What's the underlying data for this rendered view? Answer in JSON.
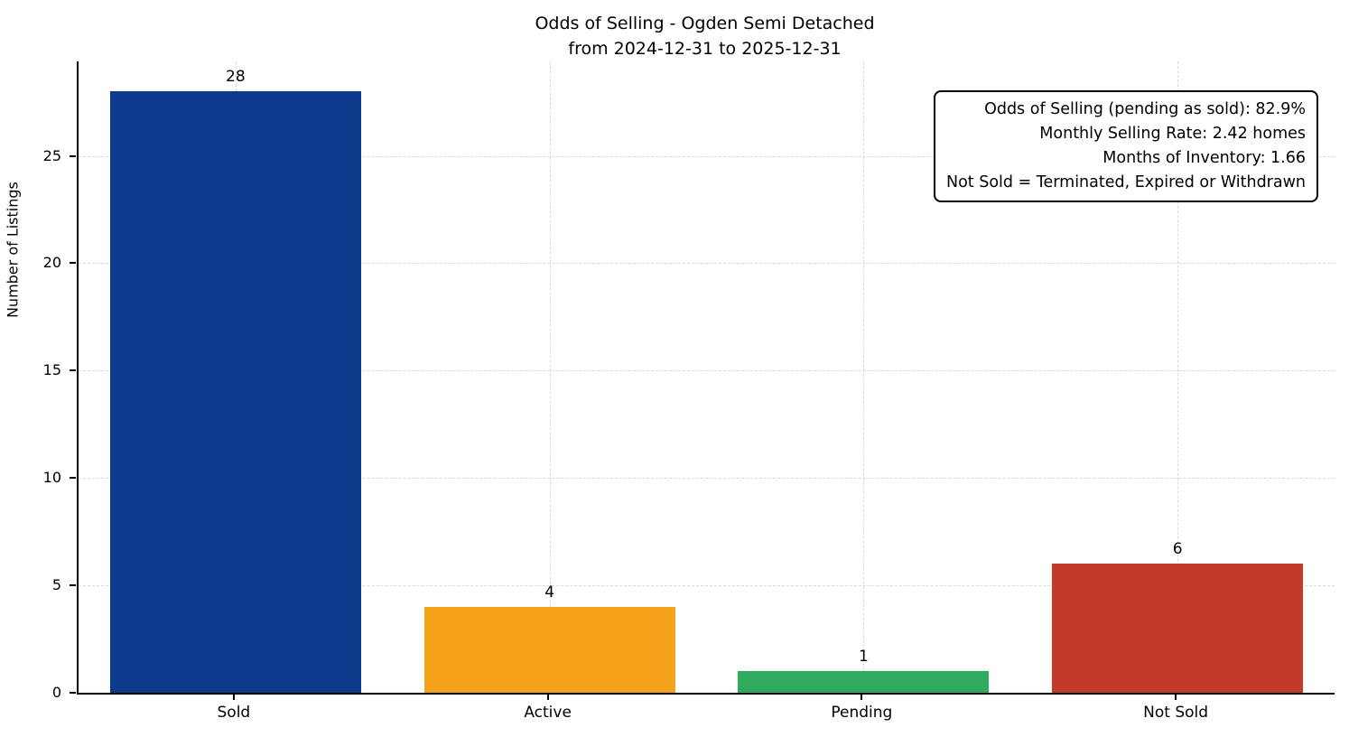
{
  "title": {
    "line1": "Odds of Selling - Ogden Semi Detached",
    "line2": "from 2024-12-31 to 2025-12-31"
  },
  "chart_data": {
    "type": "bar",
    "categories": [
      "Sold",
      "Active",
      "Pending",
      "Not Sold"
    ],
    "values": [
      28,
      4,
      1,
      6
    ],
    "bar_colors": [
      "#0e3a8d",
      "#f5a21b",
      "#2fab5e",
      "#c23b2a"
    ],
    "title": "Odds of Selling - Ogden Semi Detached from 2024-12-31 to 2025-12-31",
    "xlabel": "",
    "ylabel": "Number of Listings",
    "ylim": [
      0,
      29.4
    ],
    "yticks": [
      0,
      5,
      10,
      15,
      20,
      25
    ],
    "grid": true,
    "bar_width_fraction": 0.8,
    "legend_position": "none",
    "annotation": {
      "position": "top-right",
      "lines": [
        "Odds of Selling (pending as sold): 82.9%",
        "Monthly Selling Rate: 2.42 homes",
        "Months of Inventory: 1.66",
        "Not Sold = Terminated, Expired or Withdrawn"
      ]
    }
  }
}
